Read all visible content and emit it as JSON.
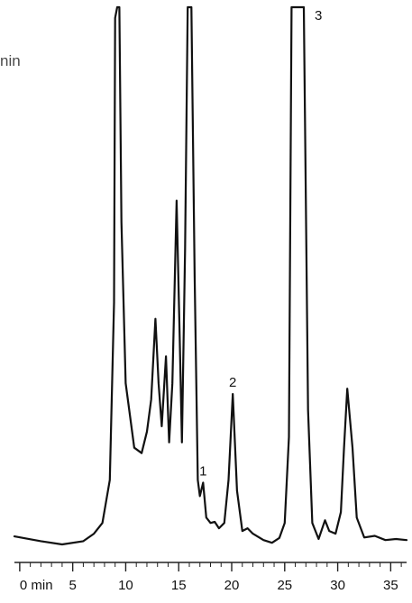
{
  "stray_text": "nin",
  "chart_data": {
    "type": "line",
    "title": "",
    "xlabel": "",
    "ylabel": "",
    "x_unit_label": "min",
    "xlim": [
      -0.5,
      36.5
    ],
    "ylim": [
      0,
      100
    ],
    "x_ticks": [
      0,
      5,
      10,
      15,
      20,
      25,
      30,
      35
    ],
    "x_tick_labels": [
      "0 min",
      "5",
      "10",
      "15",
      "20",
      "25",
      "30",
      "35"
    ],
    "grid": false,
    "legend": "none",
    "colors": {
      "trace": "#111111",
      "axis": "#222222",
      "label": "#111111"
    },
    "series": [
      {
        "points": [
          [
            -0.5,
            1.5
          ],
          [
            2.0,
            0.6
          ],
          [
            4.0,
            0.0
          ],
          [
            6.0,
            0.6
          ],
          [
            7.0,
            2.0
          ],
          [
            7.8,
            4.0
          ],
          [
            8.5,
            12.0
          ],
          [
            8.9,
            45.0
          ],
          [
            9.0,
            98.0
          ],
          [
            9.2,
            100
          ],
          [
            9.4,
            100
          ],
          [
            9.6,
            60.0
          ],
          [
            10.0,
            30.0
          ],
          [
            10.8,
            18.0
          ],
          [
            11.5,
            17.0
          ],
          [
            12.0,
            21.0
          ],
          [
            12.4,
            27.0
          ],
          [
            12.8,
            42.0
          ],
          [
            13.1,
            30.0
          ],
          [
            13.4,
            22.0
          ],
          [
            13.8,
            35.0
          ],
          [
            14.1,
            19.0
          ],
          [
            14.4,
            30.0
          ],
          [
            14.8,
            64.0
          ],
          [
            15.1,
            38.0
          ],
          [
            15.3,
            19.0
          ],
          [
            15.6,
            55.0
          ],
          [
            15.85,
            100
          ],
          [
            16.2,
            100
          ],
          [
            16.5,
            50.0
          ],
          [
            16.8,
            12.0
          ],
          [
            17.0,
            9.0
          ],
          [
            17.3,
            11.5
          ],
          [
            17.6,
            5.0
          ],
          [
            18.0,
            4.0
          ],
          [
            18.4,
            4.2
          ],
          [
            18.8,
            3.0
          ],
          [
            19.3,
            4.0
          ],
          [
            19.7,
            12.0
          ],
          [
            20.1,
            28.0
          ],
          [
            20.5,
            10.0
          ],
          [
            21.0,
            2.5
          ],
          [
            21.5,
            3.0
          ],
          [
            22.0,
            2.0
          ],
          [
            23.0,
            0.8
          ],
          [
            23.8,
            0.3
          ],
          [
            24.5,
            1.2
          ],
          [
            25.0,
            4.0
          ],
          [
            25.4,
            20.0
          ],
          [
            25.65,
            100
          ],
          [
            26.8,
            100
          ],
          [
            27.2,
            25.0
          ],
          [
            27.6,
            4.0
          ],
          [
            28.2,
            1.0
          ],
          [
            28.8,
            4.5
          ],
          [
            29.2,
            2.5
          ],
          [
            29.8,
            2.0
          ],
          [
            30.3,
            6.0
          ],
          [
            30.6,
            18.0
          ],
          [
            30.9,
            29.0
          ],
          [
            31.4,
            18.0
          ],
          [
            31.8,
            5.0
          ],
          [
            32.5,
            1.3
          ],
          [
            33.5,
            1.6
          ],
          [
            34.5,
            0.8
          ],
          [
            35.5,
            1.0
          ],
          [
            36.5,
            0.8
          ]
        ]
      }
    ],
    "annotations": [
      {
        "text": "1",
        "x": 17.3,
        "y": 11.5
      },
      {
        "text": "2",
        "x": 20.1,
        "y": 28.0
      },
      {
        "text": "3",
        "x": 26.8,
        "y": 100
      }
    ]
  }
}
